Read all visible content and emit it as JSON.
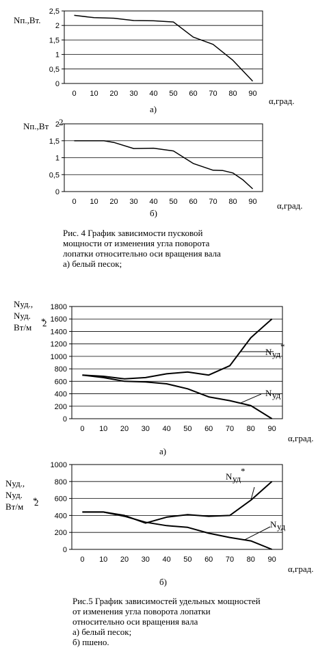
{
  "chart_data": [
    {
      "type": "line",
      "ylabel": "Nп.,Вт.",
      "xlabel": "α,град.",
      "sublabel": "а)",
      "x": [
        0,
        10,
        20,
        30,
        40,
        50,
        60,
        70,
        80,
        90
      ],
      "series": [
        {
          "values": [
            2.35,
            2.27,
            2.25,
            2.17,
            2.16,
            2.12,
            1.6,
            1.35,
            0.8,
            0.08
          ]
        }
      ],
      "xticks": [
        "0",
        "10",
        "20",
        "30",
        "40",
        "50",
        "60",
        "70",
        "80",
        "90"
      ],
      "yticks": [
        "0",
        "0,5",
        "1",
        "1,5",
        "2",
        "2,5"
      ],
      "ylim": [
        0,
        2.5
      ],
      "xlim": [
        -5,
        95
      ],
      "grid": "horizontal"
    },
    {
      "type": "line",
      "ylabel": "Nп.,Вт",
      "ylabel_sup": "2",
      "xlabel": "α,град.",
      "sublabel": "б)",
      "x": [
        0,
        10,
        15,
        20,
        30,
        40,
        50,
        60,
        70,
        75,
        80,
        85,
        90
      ],
      "series": [
        {
          "values": [
            1.5,
            1.5,
            1.5,
            1.45,
            1.27,
            1.28,
            1.2,
            0.83,
            0.63,
            0.62,
            0.55,
            0.35,
            0.08
          ]
        }
      ],
      "xticks": [
        "0",
        "10",
        "20",
        "30",
        "40",
        "50",
        "60",
        "70",
        "80",
        "90"
      ],
      "yticks": [
        "0",
        "0,5",
        "1",
        "1,5",
        "2"
      ],
      "ylim": [
        0,
        2
      ],
      "xlim": [
        -5,
        95
      ],
      "grid": "horizontal"
    },
    {
      "type": "line",
      "ylabel_lines": [
        "Nуд.,",
        "Nуд.",
        "Вт/м"
      ],
      "ylabel_marks": {
        "sup": "*",
        "sq": "2"
      },
      "xlabel": "α,град.",
      "sublabel": "а)",
      "x": [
        0,
        10,
        20,
        30,
        40,
        50,
        60,
        70,
        80,
        90
      ],
      "series": [
        {
          "name": "Nуд*",
          "values": [
            700,
            680,
            640,
            660,
            720,
            750,
            700,
            850,
            1300,
            1600
          ]
        },
        {
          "name": "Nуд",
          "values": [
            700,
            660,
            600,
            590,
            560,
            480,
            350,
            290,
            210,
            0
          ]
        }
      ],
      "xticks": [
        "0",
        "10",
        "20",
        "30",
        "40",
        "50",
        "60",
        "70",
        "80",
        "90"
      ],
      "yticks": [
        "0",
        "200",
        "400",
        "600",
        "800",
        "1000",
        "1200",
        "1400",
        "1600",
        "1800"
      ],
      "ylim": [
        0,
        1800
      ],
      "xlim": [
        -5,
        95
      ],
      "grid": "horizontal"
    },
    {
      "type": "line",
      "ylabel_lines": [
        "Nуд.,",
        "Nуд.",
        "Вт/м"
      ],
      "ylabel_marks": {
        "sup": "*",
        "sq": "2"
      },
      "xlabel": "α,град.",
      "sublabel": "б)",
      "x": [
        0,
        10,
        20,
        30,
        40,
        50,
        60,
        70,
        80,
        90
      ],
      "series": [
        {
          "name": "Nуд*",
          "values": [
            440,
            440,
            400,
            310,
            380,
            410,
            390,
            400,
            580,
            800
          ]
        },
        {
          "name": "Nуд",
          "values": [
            440,
            440,
            390,
            320,
            280,
            260,
            190,
            140,
            100,
            0
          ]
        }
      ],
      "xticks": [
        "0",
        "10",
        "20",
        "30",
        "40",
        "50",
        "60",
        "70",
        "80",
        "90"
      ],
      "yticks": [
        "0",
        "200",
        "400",
        "600",
        "800",
        "1000"
      ],
      "ylim": [
        0,
        1000
      ],
      "xlim": [
        -5,
        95
      ],
      "grid": "horizontal"
    }
  ],
  "captions": {
    "fig4": [
      "Рис. 4 График зависимости пусковой",
      "мощности от изменения угла поворота",
      "лопатки относительно оси вращения вала",
      "а) белый песок;"
    ],
    "fig5": [
      "Рис.5 График зависимостей удельных  мощностей",
      "от изменения угла поворота лопатки",
      "относительно оси вращения вала",
      "а) белый песок;",
      "б) пшено."
    ]
  }
}
